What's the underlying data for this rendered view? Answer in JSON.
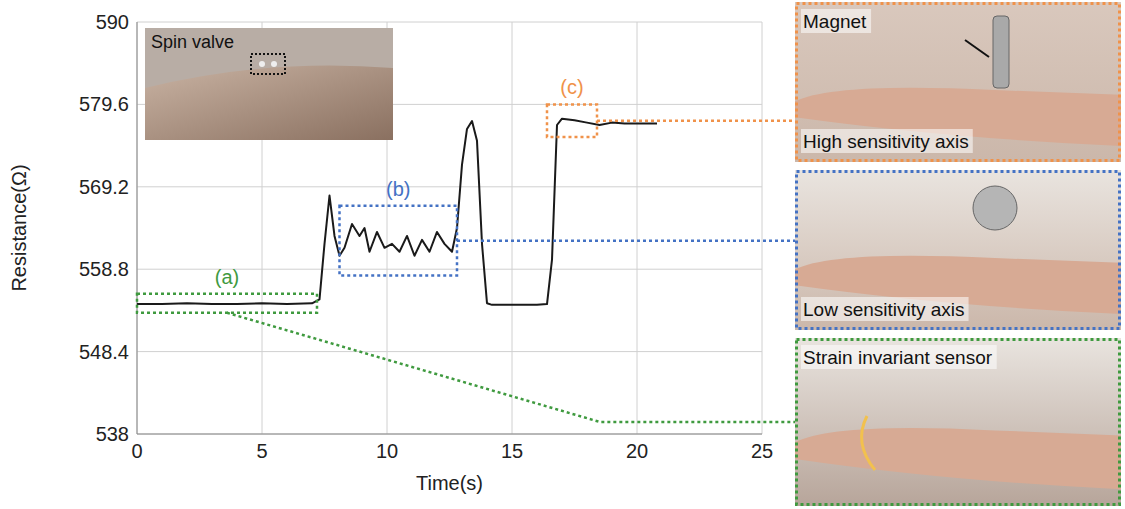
{
  "chart_data": {
    "type": "line",
    "xlabel": "Time(s)",
    "ylabel": "Resistance(Ω)",
    "x": [
      0,
      1,
      2,
      3,
      4,
      5,
      6,
      7,
      7.3,
      7.5,
      7.7,
      7.9,
      8.1,
      8.3,
      8.6,
      8.9,
      9.1,
      9.3,
      9.6,
      9.9,
      10.2,
      10.5,
      10.8,
      11.1,
      11.4,
      11.7,
      12.0,
      12.3,
      12.6,
      12.8,
      13.0,
      13.2,
      13.4,
      13.6,
      13.8,
      14.0,
      14.2,
      15,
      16,
      16.4,
      16.6,
      16.8,
      17.0,
      17.5,
      18,
      18.5,
      19,
      19.5,
      20,
      20.8
    ],
    "values": [
      554.4,
      554.4,
      554.5,
      554.4,
      554.4,
      554.5,
      554.4,
      554.5,
      555.0,
      562,
      568.1,
      563,
      560.5,
      561.5,
      564.5,
      563,
      564,
      561,
      563.5,
      561.5,
      562,
      561,
      563,
      560.5,
      562.5,
      561,
      563.5,
      562,
      561,
      564,
      572,
      576.5,
      577.5,
      575,
      562,
      554.5,
      554.3,
      554.3,
      554.3,
      554.4,
      560,
      577,
      577.8,
      577.6,
      577.3,
      577.0,
      577.3,
      577.2,
      577.2,
      577.2
    ],
    "color": "#1a1a1a",
    "xlim": [
      0,
      25
    ],
    "xticks": [
      0,
      5,
      10,
      15,
      20,
      25
    ],
    "ylim": [
      538,
      590
    ],
    "yticks": [
      538,
      548.4,
      558.8,
      569.2,
      579.6,
      590
    ],
    "grid": true,
    "annotations": [
      {
        "label": "(a)",
        "x": [
          0,
          7.2
        ],
        "y": [
          553.3,
          555.7
        ],
        "color": "#3f9a3f"
      },
      {
        "label": "(b)",
        "x": [
          8.1,
          12.8
        ],
        "y": [
          558,
          566.8
        ],
        "color": "#4472c4"
      },
      {
        "label": "(c)",
        "x": [
          16.4,
          18.4
        ],
        "y": [
          575.5,
          579.6
        ],
        "color": "#f0924a"
      }
    ]
  },
  "photos": {
    "inset": "Spin valve",
    "panels": [
      {
        "texts": [
          "Magnet",
          "High sensitivity axis"
        ],
        "color": "#f0924a"
      },
      {
        "texts": [
          "Low sensitivity axis"
        ],
        "color": "#4472c4"
      },
      {
        "texts": [
          "Strain invariant sensor"
        ],
        "color": "#3f9a3f"
      }
    ]
  }
}
